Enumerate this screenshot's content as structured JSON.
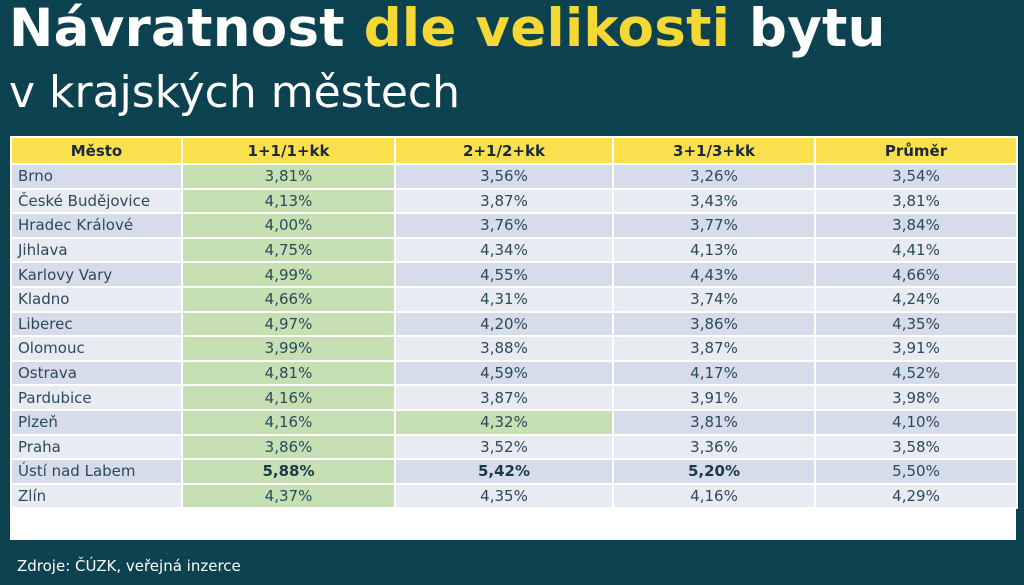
{
  "header": {
    "title_part1": "Návratnost ",
    "title_highlight": "dle velikosti",
    "title_part2": " bytu",
    "subtitle": "v krajských městech"
  },
  "table": {
    "columns": [
      "Město",
      "1+1/1+kk",
      "2+1/2+kk",
      "3+1/3+kk",
      "Průměr"
    ],
    "rows": [
      [
        "Brno",
        "3,81%",
        "3,56%",
        "3,26%",
        "3,54%"
      ],
      [
        "České Budějovice",
        "4,13%",
        "3,87%",
        "3,43%",
        "3,81%"
      ],
      [
        "Hradec Králové",
        "4,00%",
        "3,76%",
        "3,77%",
        "3,84%"
      ],
      [
        "Jihlava",
        "4,75%",
        "4,34%",
        "4,13%",
        "4,41%"
      ],
      [
        "Karlovy Vary",
        "4,99%",
        "4,55%",
        "4,43%",
        "4,66%"
      ],
      [
        "Kladno",
        "4,66%",
        "4,31%",
        "3,74%",
        "4,24%"
      ],
      [
        "Liberec",
        "4,97%",
        "4,20%",
        "3,86%",
        "4,35%"
      ],
      [
        "Olomouc",
        "3,99%",
        "3,88%",
        "3,87%",
        "3,91%"
      ],
      [
        "Ostrava",
        "4,81%",
        "4,59%",
        "4,17%",
        "4,52%"
      ],
      [
        "Pardubice",
        "4,16%",
        "3,87%",
        "3,91%",
        "3,98%"
      ],
      [
        "Plzeň",
        "4,16%",
        "4,32%",
        "3,81%",
        "4,10%"
      ],
      [
        "Praha",
        "3,86%",
        "3,52%",
        "3,36%",
        "3,58%"
      ],
      [
        "Ústí nad Labem",
        "5,88%",
        "5,42%",
        "5,20%",
        "5,50%"
      ],
      [
        "Zlín",
        "4,37%",
        "4,35%",
        "4,16%",
        "4,29%"
      ]
    ]
  },
  "source": "Zdroje: ČÚZK, veřejná inzerce",
  "colors": {
    "background": "#0c4250",
    "highlight": "#f5d835",
    "header_fill": "#fbe04e",
    "best_value_fill": "#c6e0b4",
    "row_odd": "#d6dcea",
    "row_even": "#e8ebf2"
  }
}
